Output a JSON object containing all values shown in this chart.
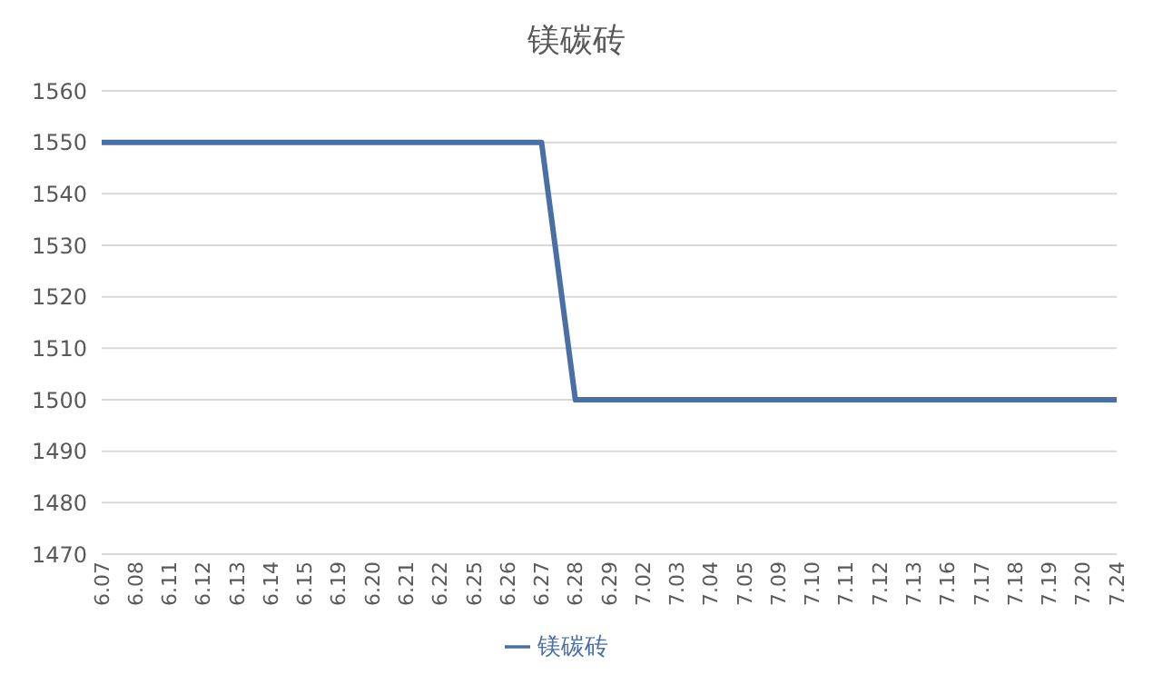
{
  "chart_data": {
    "type": "line",
    "title": "镁碳砖",
    "categories": [
      "6.07",
      "6.08",
      "6.11",
      "6.12",
      "6.13",
      "6.14",
      "6.15",
      "6.19",
      "6.20",
      "6.21",
      "6.22",
      "6.25",
      "6.26",
      "6.27",
      "6.28",
      "6.29",
      "7.02",
      "7.03",
      "7.04",
      "7.05",
      "7.09",
      "7.10",
      "7.11",
      "7.12",
      "7.13",
      "7.16",
      "7.17",
      "7.18",
      "7.19",
      "7.20",
      "7.24"
    ],
    "series": [
      {
        "name": "镁碳砖",
        "color": "#4a6fa5",
        "values": [
          1550,
          1550,
          1550,
          1550,
          1550,
          1550,
          1550,
          1550,
          1550,
          1550,
          1550,
          1550,
          1550,
          1550,
          1500,
          1500,
          1500,
          1500,
          1500,
          1500,
          1500,
          1500,
          1500,
          1500,
          1500,
          1500,
          1500,
          1500,
          1500,
          1500,
          1500
        ]
      }
    ],
    "ylim": [
      1470,
      1560
    ],
    "yticks": [
      1470,
      1480,
      1490,
      1500,
      1510,
      1520,
      1530,
      1540,
      1550,
      1560
    ],
    "grid": "y",
    "legend": "bottom",
    "marker": "none",
    "line_style": "solid"
  }
}
